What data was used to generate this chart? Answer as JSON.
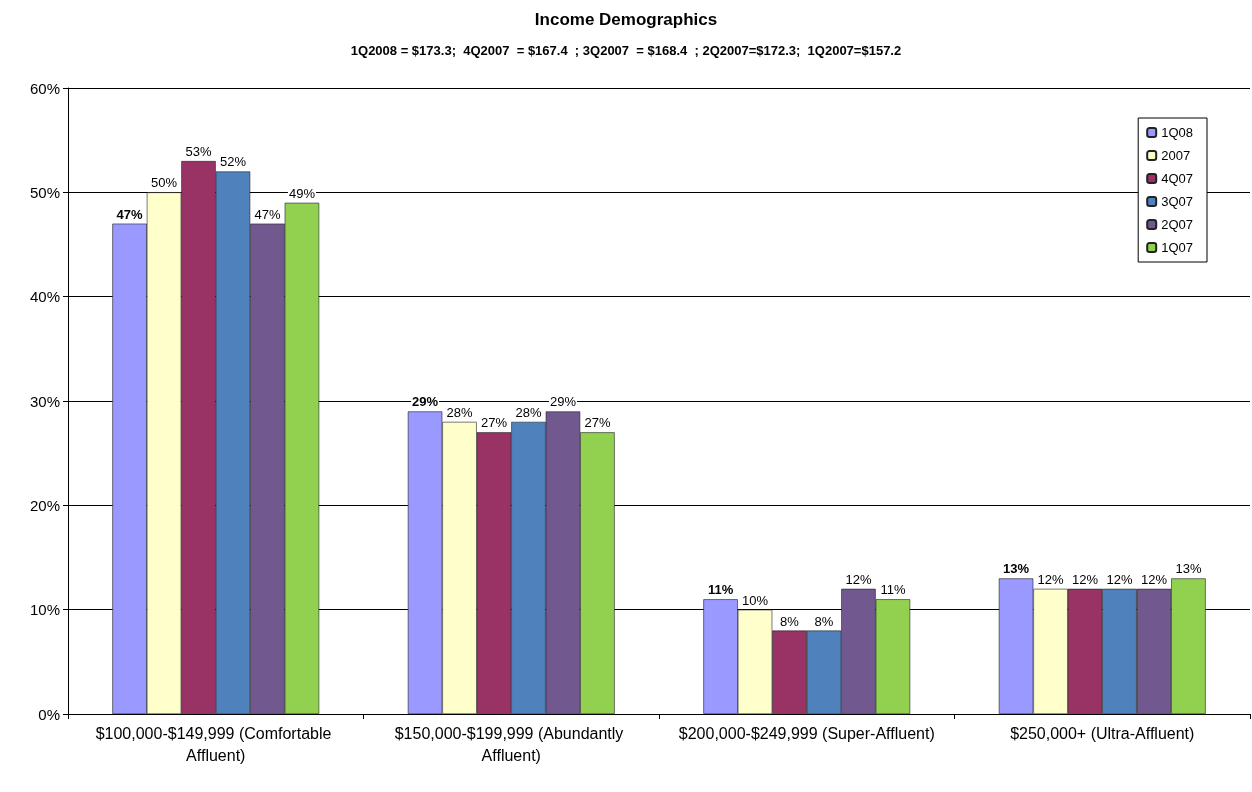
{
  "chart_data": {
    "type": "bar",
    "title": "Income Demographics",
    "subtitle": "1Q2008 = $173.3;  4Q2007  = $167.4  ; 3Q2007  = $168.4  ; 2Q2007=$172.3;  1Q2007=$157.2",
    "categories": [
      "$100,000-$149,999 (Comfortable Affluent)",
      "$150,000-$199,999 (Abundantly Affluent)",
      "$200,000-$249,999 (Super-Affluent)",
      "$250,000+ (Ultra-Affluent)"
    ],
    "series": [
      {
        "name": "1Q08",
        "color": "#9999ff",
        "values": [
          47,
          29,
          11,
          13
        ],
        "value_labels": [
          "47%",
          "29%",
          "11%",
          "13%"
        ]
      },
      {
        "name": "2007",
        "color": "#ffffcc",
        "values": [
          50,
          28,
          10,
          12
        ],
        "value_labels": [
          "50%",
          "28%",
          "10%",
          "12%"
        ]
      },
      {
        "name": "4Q07",
        "color": "#993366",
        "values": [
          53,
          27,
          8,
          12
        ],
        "value_labels": [
          "53%",
          "27%",
          "8%",
          "12%"
        ]
      },
      {
        "name": "3Q07",
        "color": "#4f81bd",
        "values": [
          52,
          28,
          8,
          12
        ],
        "value_labels": [
          "52%",
          "28%",
          "8%",
          "12%"
        ]
      },
      {
        "name": "2Q07",
        "color": "#71588f",
        "values": [
          47,
          29,
          12,
          12
        ],
        "value_labels": [
          "47%",
          "29%",
          "12%",
          "12%"
        ]
      },
      {
        "name": "1Q07",
        "color": "#92d050",
        "values": [
          49,
          27,
          11,
          13
        ],
        "value_labels": [
          "49%",
          "27%",
          "11%",
          "13%"
        ]
      }
    ],
    "ylim": [
      0,
      60
    ],
    "yticks": [
      {
        "value": 0,
        "label": "0%"
      },
      {
        "value": 10,
        "label": "10%"
      },
      {
        "value": 20,
        "label": "20%"
      },
      {
        "value": 30,
        "label": "30%"
      },
      {
        "value": 40,
        "label": "40%"
      },
      {
        "value": 50,
        "label": "50%"
      },
      {
        "value": 60,
        "label": "60%"
      }
    ],
    "grid": "y",
    "legend": "top right"
  }
}
